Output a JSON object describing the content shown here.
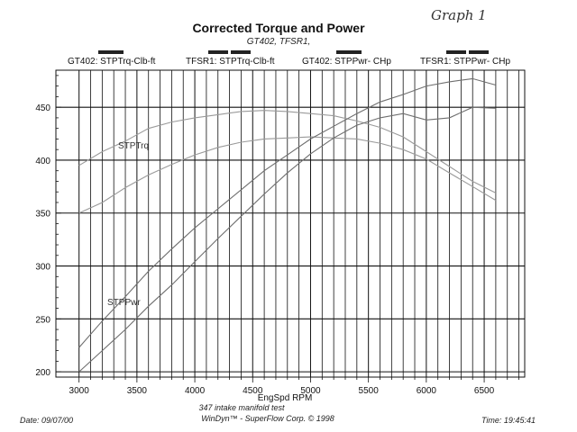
{
  "header": {
    "title": "Corrected Torque and Power",
    "subtitle": "GT402, TFSR1,",
    "handwritten_note": "Graph 1"
  },
  "legend": [
    {
      "label": "GT402: STPTrq-Clb-ft"
    },
    {
      "label": "TFSR1: STPTrq-Clb-ft"
    },
    {
      "label": "GT402: STPPwr- CHp"
    },
    {
      "label": "TFSR1: STPPwr- CHp"
    }
  ],
  "curve_labels": {
    "torque": "STPTrq",
    "power": "STPPwr"
  },
  "footer": {
    "date": "Date: 09/07/00",
    "test_name": "347 intake manifold test",
    "software": "WinDyn™ - SuperFlow Corp. © 1998",
    "time": "Time: 19:45:41"
  },
  "colors": {
    "grid": "#111111",
    "legend_bar": "#222222",
    "torque_line": "#9a9a9a",
    "power_line": "#6e6e6e"
  },
  "chart_data": {
    "type": "line",
    "title": "Corrected Torque and Power",
    "subtitle": "GT402, TFSR1,",
    "xlabel": "EngSpd  RPM",
    "ylabel": "",
    "xlim": [
      2800,
      6850
    ],
    "ylim": [
      195,
      485
    ],
    "x_ticks": [
      3000,
      3500,
      4000,
      4500,
      5000,
      5500,
      6000,
      6500
    ],
    "y_ticks": [
      200,
      250,
      300,
      350,
      400,
      450
    ],
    "grid": true,
    "legend_position": "top",
    "series": [
      {
        "name": "GT402: STPTrq-Clb-ft",
        "x": [
          3000,
          3200,
          3400,
          3500,
          3600,
          3800,
          4000,
          4200,
          4400,
          4600,
          4800,
          5000,
          5200,
          5400,
          5600,
          5800,
          6000,
          6200,
          6400,
          6600
        ],
        "y": [
          395,
          408,
          418,
          424,
          430,
          436,
          440,
          443,
          446,
          447,
          446,
          444,
          442,
          437,
          431,
          422,
          408,
          394,
          380,
          369
        ]
      },
      {
        "name": "TFSR1: STPTrq-Clb-ft",
        "x": [
          3000,
          3200,
          3400,
          3600,
          3800,
          4000,
          4200,
          4400,
          4600,
          4800,
          5000,
          5200,
          5400,
          5600,
          5800,
          6000,
          6200,
          6400,
          6600
        ],
        "y": [
          350,
          360,
          374,
          386,
          396,
          405,
          412,
          417,
          420,
          421,
          422,
          421,
          420,
          416,
          410,
          401,
          388,
          375,
          362
        ]
      },
      {
        "name": "GT402: STPPwr- CHp",
        "x": [
          3000,
          3200,
          3400,
          3600,
          3800,
          4000,
          4200,
          4400,
          4600,
          4800,
          5000,
          5200,
          5400,
          5600,
          5800,
          6000,
          6200,
          6400,
          6600
        ],
        "y": [
          223,
          248,
          271,
          295,
          316,
          336,
          354,
          372,
          390,
          405,
          420,
          432,
          444,
          455,
          462,
          470,
          474,
          477,
          471
        ]
      },
      {
        "name": "TFSR1: STPPwr- CHp",
        "x": [
          3000,
          3200,
          3400,
          3600,
          3800,
          4000,
          4200,
          4400,
          4600,
          4800,
          5000,
          5200,
          5400,
          5600,
          5800,
          6000,
          6200,
          6400,
          6600
        ],
        "y": [
          200,
          220,
          240,
          262,
          282,
          304,
          326,
          347,
          368,
          388,
          406,
          421,
          433,
          440,
          444,
          438,
          440,
          450,
          449
        ]
      }
    ]
  }
}
